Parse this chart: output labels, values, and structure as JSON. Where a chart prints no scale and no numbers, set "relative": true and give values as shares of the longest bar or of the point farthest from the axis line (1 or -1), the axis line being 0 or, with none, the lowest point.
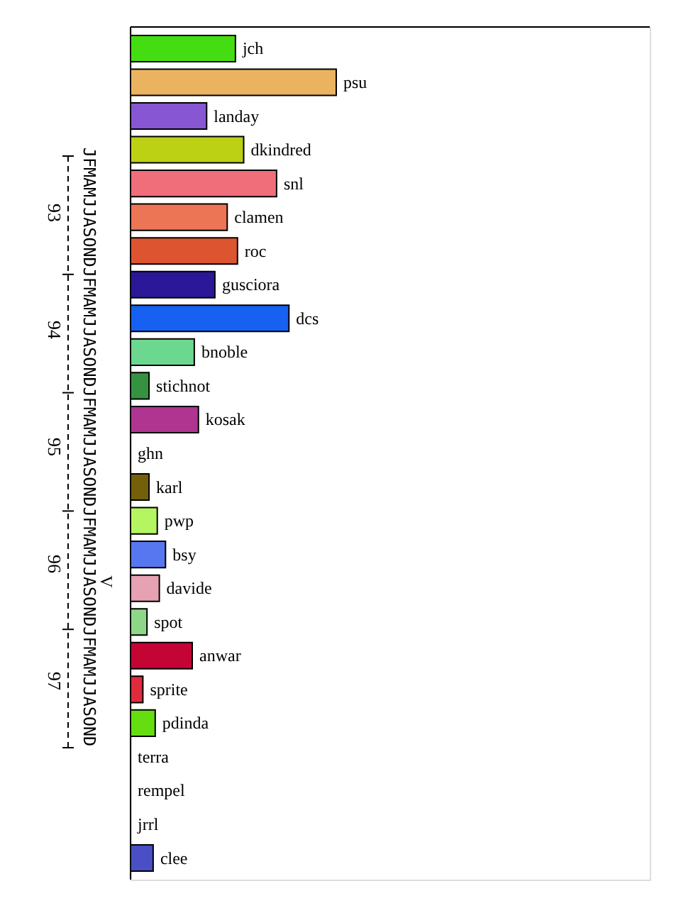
{
  "chart_data": {
    "type": "bar",
    "orientation": "horizontal",
    "relative": true,
    "categories": [
      "jch",
      "psu",
      "landay",
      "dkindred",
      "snl",
      "clamen",
      "roc",
      "gusciora",
      "dcs",
      "bnoble",
      "stichnot",
      "kosak",
      "ghn",
      "karl",
      "pwp",
      "bsy",
      "davide",
      "spot",
      "anwar",
      "sprite",
      "pdinda",
      "terra",
      "rempel",
      "jrrl",
      "clee"
    ],
    "values": [
      0.51,
      1,
      0.37,
      0.55,
      0.71,
      0.47,
      0.52,
      0.41,
      0.77,
      0.31,
      0.09,
      0.33,
      0,
      0.09,
      0.13,
      0.17,
      0.14,
      0.08,
      0.3,
      0.06,
      0.12,
      0,
      0,
      0,
      0.11
    ],
    "colors": [
      "#44dd11",
      "#eab360",
      "#8656d3",
      "#bcd114",
      "#ef6e7a",
      "#ec7556",
      "#dc5530",
      "#2a1898",
      "#1660f2",
      "#6cd78e",
      "#359240",
      "#b03590",
      null,
      "#75600a",
      "#b5f562",
      "#5777f0",
      "#e6a1b2",
      "#8ed789",
      "#c50436",
      "#e02b3c",
      "#66dd10",
      null,
      null,
      null,
      "#4a4fc6"
    ],
    "annotations": [
      "JFMAMJJASONDJFMAMJJASONDJFMAMJJASONDJFMAMJJASONDJFMAMJJASOND",
      "93",
      "94",
      "95",
      "96",
      "97",
      "V"
    ]
  }
}
